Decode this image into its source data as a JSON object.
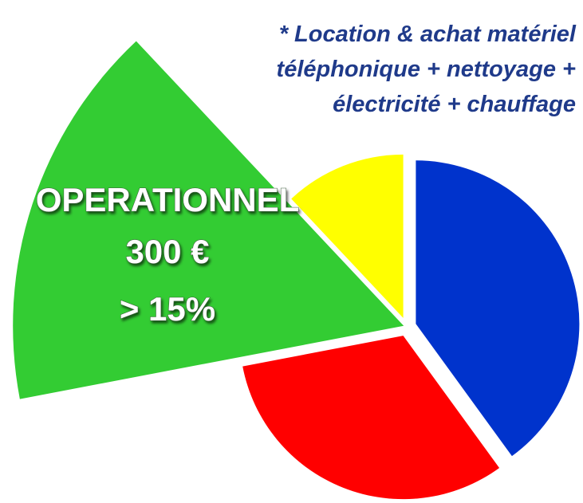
{
  "chart_data": {
    "type": "pie",
    "categories": [
      null,
      null,
      "OPERATIONNEL",
      null
    ],
    "values": [
      40,
      32,
      16,
      12
    ],
    "value_labels": [
      null,
      null,
      "> 15%",
      null
    ],
    "slice_amounts": [
      null,
      null,
      "300 €",
      null
    ],
    "colors": [
      "#0033cc",
      "#ff0000",
      "#33cc33",
      "#ffff00"
    ],
    "highlight": 2,
    "annotations": [
      "* Location & achat matériel",
      "téléphonique + nettoyage +",
      "électricité + chauffage"
    ]
  }
}
